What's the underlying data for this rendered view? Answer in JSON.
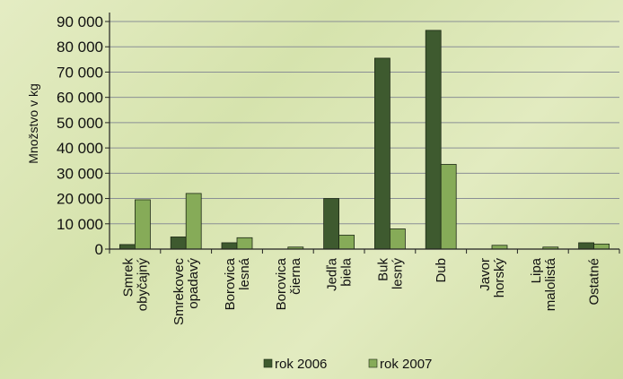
{
  "chart_data": {
    "type": "bar",
    "ylabel": "Množstvo v kg",
    "ylim": [
      0,
      90000
    ],
    "yticks": [
      0,
      10000,
      20000,
      30000,
      40000,
      50000,
      60000,
      70000,
      80000,
      90000
    ],
    "ytick_labels": [
      "0",
      "10 000",
      "20 000",
      "30 000",
      "40 000",
      "50 000",
      "60 000",
      "70 000",
      "80 000",
      "90 000"
    ],
    "grid": true,
    "legend_position": "bottom",
    "categories": [
      [
        "Smrek",
        "obyčajný"
      ],
      [
        "Smrekovec",
        "opadavý"
      ],
      [
        "Borovica",
        "lesná"
      ],
      [
        "Borovica",
        "čierna"
      ],
      [
        "Jedľa",
        "biela"
      ],
      [
        "Buk",
        "lesný"
      ],
      [
        "Dub"
      ],
      [
        "Javor",
        "horský"
      ],
      [
        "Lipa",
        "malolistá"
      ],
      [
        "Ostatné"
      ]
    ],
    "series": [
      {
        "name": "rok 2006",
        "color": "#3e5a2f",
        "values": [
          1800,
          4800,
          2500,
          0,
          20000,
          75500,
          86500,
          0,
          0,
          2500
        ]
      },
      {
        "name": "rok 2007",
        "color": "#86ab58",
        "values": [
          19500,
          22000,
          4500,
          800,
          5500,
          8000,
          33500,
          1500,
          800,
          2000
        ]
      }
    ]
  }
}
